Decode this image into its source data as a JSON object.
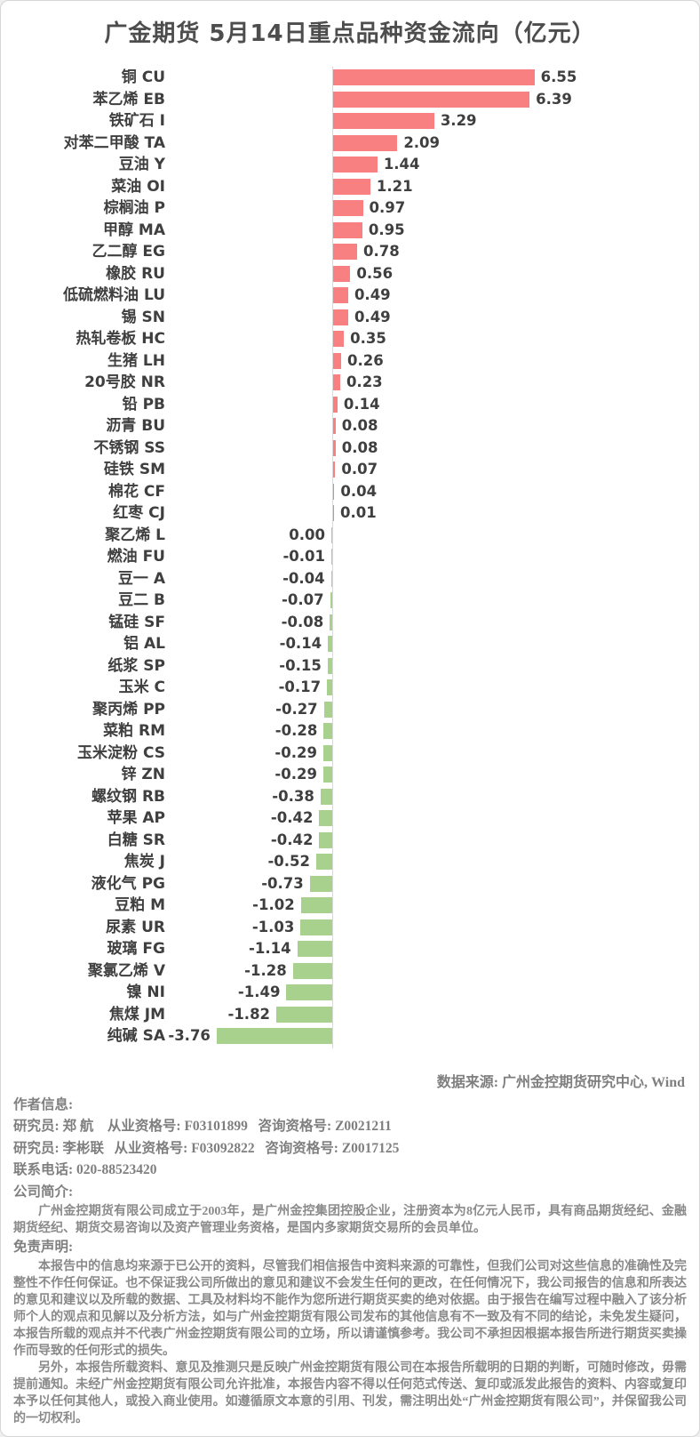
{
  "title": "广金期货 5月14日重点品种资金流向（亿元）",
  "chart_data": {
    "type": "bar",
    "orientation": "horizontal",
    "unit": "亿元",
    "grid": false,
    "legend": false,
    "xlim": [
      -4.2,
      7.2
    ],
    "positive_color": "#f88080",
    "negative_color": "#a9d18e",
    "axis_color": "#d9d9d9",
    "categories": [
      "铜 CU",
      "苯乙烯 EB",
      "铁矿石 I",
      "对苯二甲酸 TA",
      "豆油 Y",
      "菜油 OI",
      "棕榈油 P",
      "甲醇 MA",
      "乙二醇 EG",
      "橡胶 RU",
      "低硫燃料油 LU",
      "锡 SN",
      "热轧卷板 HC",
      "生猪 LH",
      "20号胶 NR",
      "铅 PB",
      "沥青 BU",
      "不锈钢 SS",
      "硅铁 SM",
      "棉花 CF",
      "红枣 CJ",
      "聚乙烯 L",
      "燃油 FU",
      "豆一 A",
      "豆二 B",
      "锰硅 SF",
      "铝 AL",
      "纸浆 SP",
      "玉米 C",
      "聚丙烯 PP",
      "菜粕 RM",
      "玉米淀粉 CS",
      "锌 ZN",
      "螺纹钢 RB",
      "苹果 AP",
      "白糖 SR",
      "焦炭 J",
      "液化气 PG",
      "豆粕 M",
      "尿素 UR",
      "玻璃 FG",
      "聚氯乙烯 V",
      "镍 NI",
      "焦煤 JM",
      "纯碱 SA"
    ],
    "values": [
      6.55,
      6.39,
      3.29,
      2.09,
      1.44,
      1.21,
      0.97,
      0.95,
      0.78,
      0.56,
      0.49,
      0.49,
      0.35,
      0.26,
      0.23,
      0.14,
      0.08,
      0.08,
      0.07,
      0.04,
      0.01,
      0.0,
      -0.01,
      -0.04,
      -0.07,
      -0.08,
      -0.14,
      -0.15,
      -0.17,
      -0.27,
      -0.28,
      -0.29,
      -0.29,
      -0.38,
      -0.42,
      -0.42,
      -0.52,
      -0.73,
      -1.02,
      -1.03,
      -1.14,
      -1.28,
      -1.49,
      -1.82,
      -3.76
    ]
  },
  "source_note": "数据来源: 广州金控期货研究中心, Wind",
  "footer": {
    "author_heading": "作者信息:",
    "researcher_lines": [
      "研究员: 郑 航    从业资格号: F03101899   咨询资格号: Z0021211",
      "研究员: 李彬联   从业资格号: F03092822   咨询资格号: Z0017125"
    ],
    "phone_line": "联系电话: 020-88523420",
    "company_heading": "公司简介:",
    "company_intro": "广州金控期货有限公司成立于2003年，是广州金控集团控股企业，注册资本为8亿元人民币，具有商品期货经纪、金融期货经纪、期货交易咨询以及资产管理业务资格，是国内多家期货交易所的会员单位。",
    "disclaimer_heading": "免责声明:",
    "disclaimer_p1": "本报告中的信息均来源于已公开的资料，尽管我们相信报告中资料来源的可靠性，但我们公司对这些信息的准确性及完整性不作任何保证。也不保证我公司所做出的意见和建议不会发生任何的更改，在任何情况下，我公司报告的信息和所表达的意见和建议以及所载的数据、工具及材料均不能作为您所进行期货买卖的绝对依据。由于报告在编写过程中融入了该分析师个人的观点和见解以及分析方法，如与广州金控期货有限公司发布的其他信息有不一致及有不同的结论，未免发生疑问，本报告所载的观点并不代表广州金控期货有限公司的立场，所以请谨慎参考。我公司不承担因根据本报告所进行期货买卖操作而导致的任何形式的损失。",
    "disclaimer_p2": "另外，本报告所载资料、意见及推测只是反映广州金控期货有限公司在本报告所载明的日期的判断，可随时修改，毋需提前通知。未经广州金控期货有限公司允许批准，本报告内容不得以任何范式传送、复印或派发此报告的资料、内容或复印本予以任何其他人，或投入商业使用。如遵循原文本意的引用、刊发，需注明出处“广州金控期货有限公司”，并保留我公司的一切权利。"
  }
}
